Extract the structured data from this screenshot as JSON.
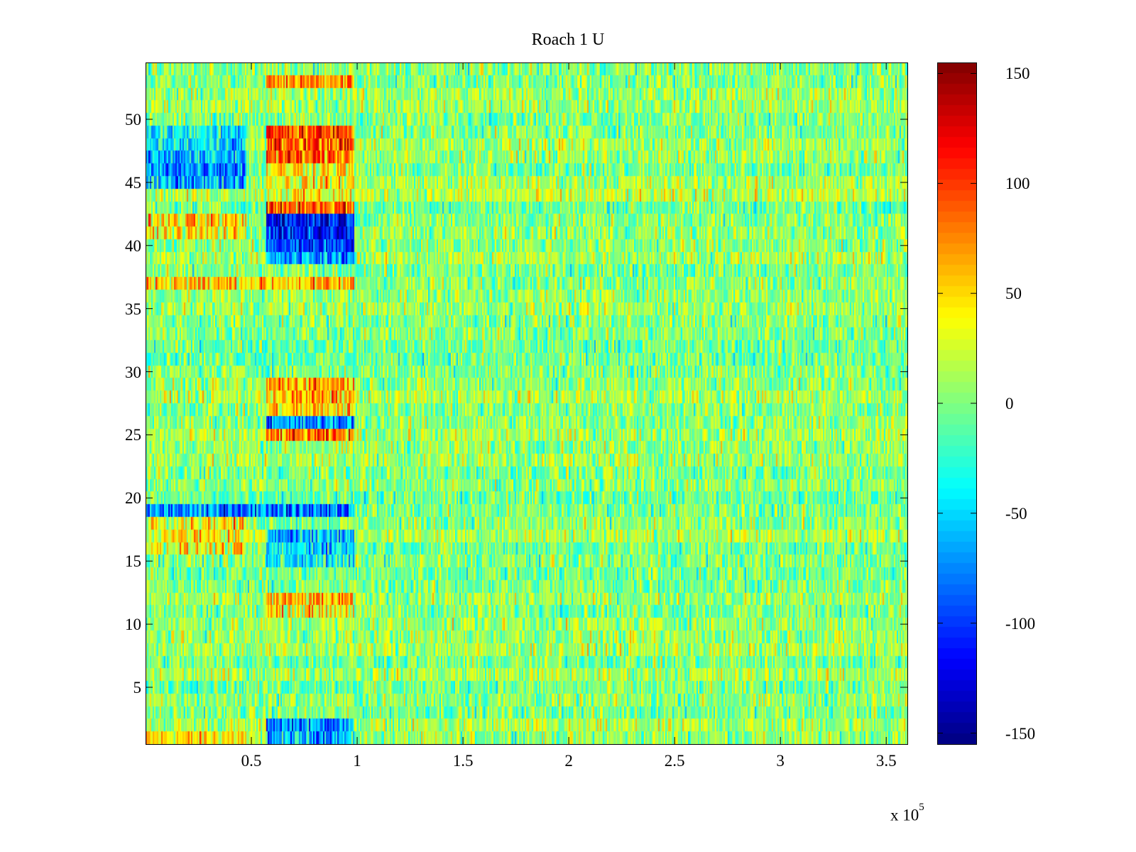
{
  "chart_data": {
    "type": "heatmap",
    "title": "Roach 1 U",
    "xlabel": "",
    "ylabel": "",
    "x_range": [
      0,
      360000
    ],
    "y_range": [
      0.5,
      54.5
    ],
    "rows": 54,
    "x_ticks": [
      {
        "value": 50000,
        "label": "0.5"
      },
      {
        "value": 100000,
        "label": "1"
      },
      {
        "value": 150000,
        "label": "1.5"
      },
      {
        "value": 200000,
        "label": "2"
      },
      {
        "value": 250000,
        "label": "2.5"
      },
      {
        "value": 300000,
        "label": "3"
      },
      {
        "value": 350000,
        "label": "3.5"
      }
    ],
    "x_exponent_label": "x 10",
    "x_exponent": "5",
    "y_ticks": [
      5,
      10,
      15,
      20,
      25,
      30,
      35,
      40,
      45,
      50
    ],
    "colorbar": {
      "colormap": "jet",
      "range": [
        -155,
        155
      ],
      "ticks": [
        150,
        100,
        50,
        0,
        -50,
        -100,
        -150
      ]
    },
    "background_mean": 5,
    "row_segments": [
      {
        "row": 53,
        "x_start": 57000,
        "x_end": 98000,
        "mean": 70
      },
      {
        "row": 49,
        "x_start": 57000,
        "x_end": 98000,
        "mean": 95
      },
      {
        "row": 48,
        "x_start": 57000,
        "x_end": 98000,
        "mean": 90
      },
      {
        "row": 47,
        "x_start": 57000,
        "x_end": 98000,
        "mean": 85
      },
      {
        "row": 46,
        "x_start": 57000,
        "x_end": 98000,
        "mean": 45
      },
      {
        "row": 45,
        "x_start": 57000,
        "x_end": 98000,
        "mean": 40
      },
      {
        "row": 44,
        "x_start": 57000,
        "x_end": 98000,
        "mean": 35
      },
      {
        "row": 49,
        "x_start": 0,
        "x_end": 47000,
        "mean": -40
      },
      {
        "row": 48,
        "x_start": 0,
        "x_end": 47000,
        "mean": -45
      },
      {
        "row": 47,
        "x_start": 0,
        "x_end": 47000,
        "mean": -60
      },
      {
        "row": 46,
        "x_start": 0,
        "x_end": 47000,
        "mean": -70
      },
      {
        "row": 45,
        "x_start": 0,
        "x_end": 47000,
        "mean": -60
      },
      {
        "row": 43,
        "x_start": 57000,
        "x_end": 98000,
        "mean": 90
      },
      {
        "row": 42,
        "x_start": 57000,
        "x_end": 98000,
        "mean": -110
      },
      {
        "row": 41,
        "x_start": 57000,
        "x_end": 98000,
        "mean": -115
      },
      {
        "row": 40,
        "x_start": 57000,
        "x_end": 98000,
        "mean": -100
      },
      {
        "row": 39,
        "x_start": 57000,
        "x_end": 98000,
        "mean": -70
      },
      {
        "row": 42,
        "x_start": 0,
        "x_end": 47000,
        "mean": 45
      },
      {
        "row": 41,
        "x_start": 0,
        "x_end": 47000,
        "mean": 40
      },
      {
        "row": 37,
        "x_start": 0,
        "x_end": 98000,
        "mean": 55
      },
      {
        "row": 29,
        "x_start": 57000,
        "x_end": 98000,
        "mean": 70
      },
      {
        "row": 28,
        "x_start": 57000,
        "x_end": 98000,
        "mean": 60
      },
      {
        "row": 27,
        "x_start": 57000,
        "x_end": 98000,
        "mean": 50
      },
      {
        "row": 26,
        "x_start": 57000,
        "x_end": 98000,
        "mean": -75
      },
      {
        "row": 25,
        "x_start": 57000,
        "x_end": 98000,
        "mean": 75
      },
      {
        "row": 19,
        "x_start": 0,
        "x_end": 98000,
        "mean": -75
      },
      {
        "row": 17,
        "x_start": 57000,
        "x_end": 98000,
        "mean": -55
      },
      {
        "row": 16,
        "x_start": 57000,
        "x_end": 98000,
        "mean": -45
      },
      {
        "row": 15,
        "x_start": 57000,
        "x_end": 98000,
        "mean": -40
      },
      {
        "row": 18,
        "x_start": 0,
        "x_end": 47000,
        "mean": 45
      },
      {
        "row": 17,
        "x_start": 0,
        "x_end": 47000,
        "mean": 40
      },
      {
        "row": 16,
        "x_start": 0,
        "x_end": 47000,
        "mean": 35
      },
      {
        "row": 12,
        "x_start": 57000,
        "x_end": 98000,
        "mean": 55
      },
      {
        "row": 11,
        "x_start": 57000,
        "x_end": 98000,
        "mean": 45
      },
      {
        "row": 2,
        "x_start": 57000,
        "x_end": 98000,
        "mean": -70
      },
      {
        "row": 1,
        "x_start": 57000,
        "x_end": 98000,
        "mean": -60
      },
      {
        "row": 1,
        "x_start": 0,
        "x_end": 47000,
        "mean": 45
      }
    ]
  }
}
